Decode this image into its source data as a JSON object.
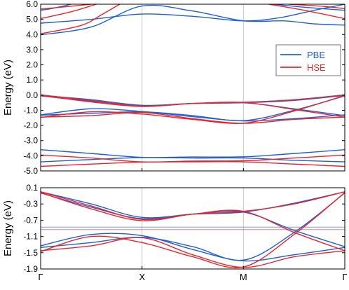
{
  "chart_data": {
    "type": "line",
    "x_categories": [
      "Γ",
      "X",
      "M",
      "Γ"
    ],
    "legend": {
      "placement": "top-right",
      "entries": [
        {
          "name": "PBE",
          "color": "#1f5fd6"
        },
        {
          "name": "HSE",
          "color": "#e8252b"
        }
      ]
    },
    "panels": [
      {
        "ylabel": "Energy (eV)",
        "ylim": [
          -5.0,
          6.0
        ],
        "yticks": [
          6.0,
          5.0,
          4.0,
          3.0,
          2.0,
          1.0,
          0.0,
          -1.0,
          -2.0,
          -3.0,
          -4.0,
          -5.0
        ],
        "ytick_labels": [
          "6.0",
          "5.0",
          "4.0",
          "3.0",
          "2.0",
          "1.0",
          "0.0",
          "-1.0",
          "-2.0",
          "-3.0",
          "-4.0",
          "-5.0"
        ],
        "series": [
          {
            "color": "#1f5fd6",
            "points": [
              [
                0,
                5.6
              ],
              [
                0.1,
                5.7
              ],
              [
                0.3,
                6.0
              ]
            ]
          },
          {
            "color": "#1f5fd6",
            "points": [
              [
                0,
                4.75
              ],
              [
                0.5,
                5.0
              ],
              [
                1,
                5.35
              ],
              [
                1.5,
                5.2
              ],
              [
                2,
                4.9
              ],
              [
                2.35,
                5.1
              ],
              [
                2.7,
                5.6
              ],
              [
                3,
                6.0
              ]
            ]
          },
          {
            "color": "#1f5fd6",
            "points": [
              [
                0,
                3.98
              ],
              [
                0.5,
                4.5
              ],
              [
                1,
                5.88
              ],
              [
                1.5,
                5.55
              ],
              [
                2,
                4.9
              ],
              [
                2.4,
                4.9
              ],
              [
                2.7,
                4.7
              ],
              [
                3,
                4.62
              ]
            ]
          },
          {
            "color": "#1f5fd6",
            "points": [
              [
                2.3,
                6.0
              ],
              [
                2.6,
                5.8
              ],
              [
                3,
                5.6
              ]
            ]
          },
          {
            "color": "#e8252b",
            "points": [
              [
                0,
                5.68
              ],
              [
                0.2,
                5.8
              ],
              [
                0.5,
                6.0
              ]
            ]
          },
          {
            "color": "#e8252b",
            "points": [
              [
                0,
                5.05
              ],
              [
                0.3,
                5.5
              ],
              [
                0.55,
                6.0
              ]
            ]
          },
          {
            "color": "#e8252b",
            "points": [
              [
                0,
                4.05
              ],
              [
                0.4,
                4.6
              ],
              [
                0.6,
                5.3
              ],
              [
                0.78,
                6.0
              ]
            ]
          },
          {
            "color": "#e8252b",
            "points": [
              [
                2.25,
                6.0
              ],
              [
                2.6,
                5.6
              ],
              [
                3,
                5.05
              ]
            ]
          },
          {
            "color": "#e8252b",
            "points": [
              [
                2.45,
                6.0
              ],
              [
                2.8,
                5.85
              ],
              [
                3,
                5.7
              ]
            ]
          },
          {
            "color": "#1f5fd6",
            "points": [
              [
                0,
                -0.02
              ],
              [
                0.5,
                -0.3
              ],
              [
                1,
                -0.67
              ],
              [
                1.5,
                -0.55
              ],
              [
                2,
                -0.5
              ],
              [
                2.5,
                -0.35
              ],
              [
                3,
                -0.02
              ]
            ]
          },
          {
            "color": "#1f5fd6",
            "points": [
              [
                0,
                -0.05
              ],
              [
                0.5,
                -0.4
              ],
              [
                1,
                -0.69
              ],
              [
                1.5,
                -0.55
              ],
              [
                2,
                -0.5
              ],
              [
                2.5,
                -0.9
              ],
              [
                3,
                -1.35
              ]
            ]
          },
          {
            "color": "#1f5fd6",
            "points": [
              [
                0,
                -1.3
              ],
              [
                0.5,
                -0.9
              ],
              [
                1,
                -1.08
              ],
              [
                1.5,
                -1.42
              ],
              [
                2,
                -1.7
              ],
              [
                2.5,
                -1.55
              ],
              [
                3,
                -1.3
              ]
            ]
          },
          {
            "color": "#1f5fd6",
            "points": [
              [
                0,
                -1.32
              ],
              [
                0.5,
                -1.2
              ],
              [
                1,
                -1.1
              ],
              [
                1.5,
                -1.35
              ],
              [
                2,
                -1.68
              ],
              [
                2.5,
                -1.0
              ],
              [
                3,
                -0.05
              ]
            ]
          },
          {
            "color": "#e8252b",
            "points": [
              [
                0,
                0.02
              ],
              [
                0.5,
                -0.35
              ],
              [
                1,
                -0.73
              ],
              [
                1.5,
                -0.55
              ],
              [
                2,
                -0.47
              ],
              [
                2.5,
                -0.3
              ],
              [
                3,
                0.02
              ]
            ]
          },
          {
            "color": "#e8252b",
            "points": [
              [
                0,
                -0.02
              ],
              [
                0.5,
                -0.45
              ],
              [
                1,
                -0.75
              ],
              [
                1.5,
                -0.55
              ],
              [
                2,
                -0.48
              ],
              [
                2.5,
                -0.95
              ],
              [
                3,
                -1.45
              ]
            ]
          },
          {
            "color": "#e8252b",
            "points": [
              [
                0,
                -1.45
              ],
              [
                0.5,
                -1.35
              ],
              [
                1,
                -1.15
              ],
              [
                1.5,
                -1.55
              ],
              [
                2,
                -1.86
              ],
              [
                2.5,
                -1.6
              ],
              [
                3,
                -1.45
              ]
            ]
          },
          {
            "color": "#e8252b",
            "points": [
              [
                0,
                -1.47
              ],
              [
                0.5,
                -1.1
              ],
              [
                1,
                -1.25
              ],
              [
                1.5,
                -1.6
              ],
              [
                2,
                -1.85
              ],
              [
                2.5,
                -1.05
              ],
              [
                3,
                -0.02
              ]
            ]
          },
          {
            "color": "#1f5fd6",
            "points": [
              [
                0,
                -3.6
              ],
              [
                0.5,
                -3.85
              ],
              [
                1,
                -4.1
              ],
              [
                1.5,
                -4.08
              ],
              [
                2,
                -4.07
              ],
              [
                2.5,
                -3.85
              ],
              [
                3,
                -3.6
              ]
            ]
          },
          {
            "color": "#1f5fd6",
            "points": [
              [
                0,
                -4.4
              ],
              [
                0.5,
                -4.25
              ],
              [
                1,
                -4.12
              ],
              [
                1.5,
                -4.15
              ],
              [
                2,
                -4.15
              ],
              [
                2.5,
                -4.3
              ],
              [
                3,
                -4.4
              ]
            ]
          },
          {
            "color": "#e8252b",
            "points": [
              [
                0,
                -3.95
              ],
              [
                0.5,
                -4.15
              ],
              [
                1,
                -4.4
              ],
              [
                1.5,
                -4.35
              ],
              [
                2,
                -4.33
              ],
              [
                2.5,
                -4.15
              ],
              [
                3,
                -3.95
              ]
            ]
          },
          {
            "color": "#e8252b",
            "points": [
              [
                0,
                -4.7
              ],
              [
                0.5,
                -4.55
              ],
              [
                1,
                -4.42
              ],
              [
                1.5,
                -4.4
              ],
              [
                2,
                -4.4
              ],
              [
                2.5,
                -4.55
              ],
              [
                3,
                -4.7
              ]
            ]
          }
        ]
      },
      {
        "ylabel": "Energy (eV)",
        "ylim": [
          -1.9,
          0.1
        ],
        "yticks": [
          0.1,
          -0.3,
          -0.7,
          -1.1,
          -1.5,
          -1.9
        ],
        "ytick_labels": [
          "0.1",
          "-0.3",
          "-0.7",
          "-1.1",
          "-1.5",
          "-1.9"
        ],
        "hlines": [
          {
            "y": -0.87,
            "color": "#1f5fd6"
          },
          {
            "y": -0.93,
            "color": "#e8252b"
          }
        ],
        "series": [
          {
            "color": "#1f5fd6",
            "points": [
              [
                0,
                0.0
              ],
              [
                0.5,
                -0.3
              ],
              [
                1,
                -0.63
              ],
              [
                1.5,
                -0.55
              ],
              [
                2,
                -0.5
              ],
              [
                2.5,
                -0.28
              ],
              [
                3,
                0.0
              ]
            ]
          },
          {
            "color": "#1f5fd6",
            "points": [
              [
                0,
                -0.03
              ],
              [
                0.5,
                -0.38
              ],
              [
                1,
                -0.66
              ],
              [
                1.5,
                -0.55
              ],
              [
                2,
                -0.5
              ],
              [
                2.5,
                -0.95
              ],
              [
                3,
                -1.35
              ]
            ]
          },
          {
            "color": "#1f5fd6",
            "points": [
              [
                0,
                -1.33
              ],
              [
                0.5,
                -1.05
              ],
              [
                1,
                -1.08
              ],
              [
                1.5,
                -1.42
              ],
              [
                2,
                -1.7
              ],
              [
                2.5,
                -1.55
              ],
              [
                3,
                -1.37
              ]
            ]
          },
          {
            "color": "#1f5fd6",
            "points": [
              [
                0,
                -1.37
              ],
              [
                0.5,
                -1.25
              ],
              [
                1,
                -1.12
              ],
              [
                1.5,
                -1.35
              ],
              [
                2,
                -1.68
              ],
              [
                2.5,
                -1.0
              ],
              [
                3,
                -0.03
              ]
            ]
          },
          {
            "color": "#e8252b",
            "points": [
              [
                0,
                0.0
              ],
              [
                0.5,
                -0.35
              ],
              [
                1,
                -0.68
              ],
              [
                1.5,
                -0.55
              ],
              [
                2,
                -0.48
              ],
              [
                2.5,
                -0.3
              ],
              [
                3,
                0.0
              ]
            ]
          },
          {
            "color": "#e8252b",
            "points": [
              [
                0,
                -0.02
              ],
              [
                0.5,
                -0.42
              ],
              [
                1,
                -0.71
              ],
              [
                1.5,
                -0.55
              ],
              [
                2,
                -0.48
              ],
              [
                2.5,
                -1.0
              ],
              [
                3,
                -1.45
              ]
            ]
          },
          {
            "color": "#e8252b",
            "points": [
              [
                0,
                -1.45
              ],
              [
                0.5,
                -1.33
              ],
              [
                1,
                -1.13
              ],
              [
                1.5,
                -1.55
              ],
              [
                2,
                -1.86
              ],
              [
                2.5,
                -1.6
              ],
              [
                3,
                -1.45
              ]
            ]
          },
          {
            "color": "#e8252b",
            "points": [
              [
                0,
                -1.47
              ],
              [
                0.5,
                -1.1
              ],
              [
                1,
                -1.25
              ],
              [
                1.5,
                -1.6
              ],
              [
                2,
                -1.85
              ],
              [
                2.5,
                -1.05
              ],
              [
                3,
                -0.02
              ]
            ]
          }
        ]
      }
    ]
  }
}
